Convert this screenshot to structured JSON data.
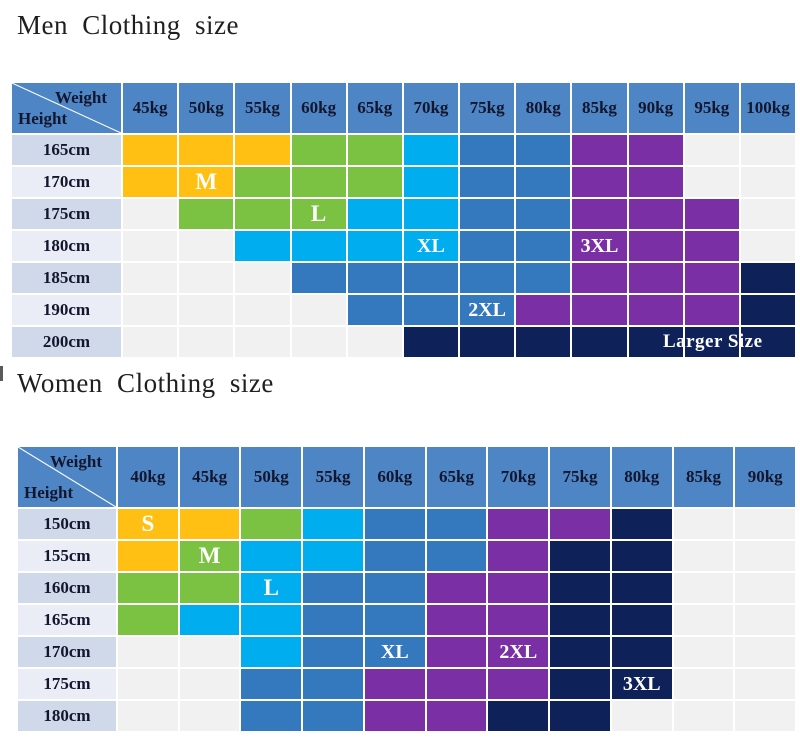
{
  "corner": {
    "weight_label": "Weight",
    "height_label": "Height"
  },
  "palette": {
    "header_blue": "#4E86C5",
    "header_text": "#13162E",
    "title_text": "#1F1F1F",
    "size_label_text": "#FFFFFF",
    "row_label_dark": "#D0D9E9",
    "row_label_light": "#EAEDF6",
    "empty_cell": "#F1F1F2",
    "grid_line": "#FFFFFF",
    "orange": "#FFC013",
    "green": "#7CC242",
    "cyan": "#00AEEF",
    "blue": "#3478BE",
    "purple": "#7B2FA5",
    "navy": "#0E2159"
  },
  "chart_data": [
    {
      "type": "heatmap",
      "title": "Men Clothing size",
      "xlabel": "Weight",
      "ylabel": "Height",
      "x": [
        "45kg",
        "50kg",
        "55kg",
        "60kg",
        "65kg",
        "70kg",
        "75kg",
        "80kg",
        "85kg",
        "90kg",
        "95kg",
        "100kg"
      ],
      "y": [
        "165cm",
        "170cm",
        "175cm",
        "180cm",
        "185cm",
        "190cm",
        "200cm"
      ],
      "values": [
        [
          "M",
          "M",
          "M",
          "L",
          "L",
          "XL",
          "2XL",
          "2XL",
          "3XL",
          "3XL",
          null,
          null
        ],
        [
          "M",
          "M",
          "L",
          "L",
          "L",
          "XL",
          "2XL",
          "2XL",
          "3XL",
          "3XL",
          null,
          null
        ],
        [
          null,
          "L",
          "L",
          "L",
          "XL",
          "XL",
          "2XL",
          "2XL",
          "3XL",
          "3XL",
          "3XL",
          null
        ],
        [
          null,
          null,
          "XL",
          "XL",
          "XL",
          "XL",
          "2XL",
          "2XL",
          "3XL",
          "3XL",
          "3XL",
          null
        ],
        [
          null,
          null,
          null,
          "2XL",
          "2XL",
          "2XL",
          "2XL",
          "2XL",
          "3XL",
          "3XL",
          "3XL",
          "Larger Size"
        ],
        [
          null,
          null,
          null,
          null,
          "2XL",
          "2XL",
          "2XL",
          "3XL",
          "3XL",
          "3XL",
          "3XL",
          "Larger Size"
        ],
        [
          null,
          null,
          null,
          null,
          null,
          "Larger Size",
          "Larger Size",
          "Larger Size",
          "Larger Size",
          "Larger Size",
          "Larger Size",
          "Larger Size"
        ]
      ],
      "cell_labels": [
        {
          "r": 1,
          "c": 1,
          "text": "M",
          "span": 1
        },
        {
          "r": 2,
          "c": 3,
          "text": "L",
          "span": 1
        },
        {
          "r": 3,
          "c": 5,
          "text": "XL",
          "span": 1
        },
        {
          "r": 3,
          "c": 8,
          "text": "3XL",
          "span": 1
        },
        {
          "r": 5,
          "c": 6,
          "text": "2XL",
          "span": 1
        },
        {
          "r": 6,
          "c": 9,
          "text": "Larger Size",
          "span": 3
        }
      ],
      "color_map": {
        "M": "#FFC013",
        "L": "#7CC242",
        "XL": "#00AEEF",
        "2XL": "#3478BE",
        "3XL": "#7B2FA5",
        "Larger Size": "#0E2159"
      },
      "legend_note": "grid on, white gridlines; empty cells = size not applicable"
    },
    {
      "type": "heatmap",
      "title": "Women Clothing size",
      "xlabel": "Weight",
      "ylabel": "Height",
      "x": [
        "40kg",
        "45kg",
        "50kg",
        "55kg",
        "60kg",
        "65kg",
        "70kg",
        "75kg",
        "80kg",
        "85kg",
        "90kg"
      ],
      "y": [
        "150cm",
        "155cm",
        "160cm",
        "165cm",
        "170cm",
        "175cm",
        "180cm"
      ],
      "values": [
        [
          "S",
          "S",
          "M",
          "L",
          "XL",
          "XL",
          "2XL",
          "2XL",
          "3XL",
          null,
          null
        ],
        [
          "S",
          "M",
          "L",
          "L",
          "XL",
          "XL",
          "2XL",
          "3XL",
          "3XL",
          null,
          null
        ],
        [
          "M",
          "M",
          "L",
          "XL",
          "XL",
          "2XL",
          "2XL",
          "3XL",
          "3XL",
          null,
          null
        ],
        [
          "M",
          "L",
          "L",
          "XL",
          "XL",
          "2XL",
          "2XL",
          "3XL",
          "3XL",
          null,
          null
        ],
        [
          null,
          null,
          "L",
          "XL",
          "XL",
          "2XL",
          "2XL",
          "3XL",
          "3XL",
          null,
          null
        ],
        [
          null,
          null,
          "XL",
          "XL",
          "2XL",
          "2XL",
          "2XL",
          "3XL",
          "3XL",
          null,
          null
        ],
        [
          null,
          null,
          "XL",
          "XL",
          "2XL",
          "2XL",
          "3XL",
          "3XL",
          null,
          null,
          null
        ]
      ],
      "cell_labels": [
        {
          "r": 0,
          "c": 0,
          "text": "S",
          "span": 1
        },
        {
          "r": 1,
          "c": 1,
          "text": "M",
          "span": 1
        },
        {
          "r": 2,
          "c": 2,
          "text": "L",
          "span": 1
        },
        {
          "r": 4,
          "c": 4,
          "text": "XL",
          "span": 1
        },
        {
          "r": 4,
          "c": 6,
          "text": "2XL",
          "span": 1
        },
        {
          "r": 5,
          "c": 8,
          "text": "3XL",
          "span": 1
        }
      ],
      "color_map": {
        "S": "#FFC013",
        "M": "#7CC242",
        "L": "#00AEEF",
        "XL": "#3478BE",
        "2XL": "#7B2FA5",
        "3XL": "#0E2159"
      },
      "legend_note": "grid on, white gridlines; empty cells = size not applicable"
    }
  ]
}
